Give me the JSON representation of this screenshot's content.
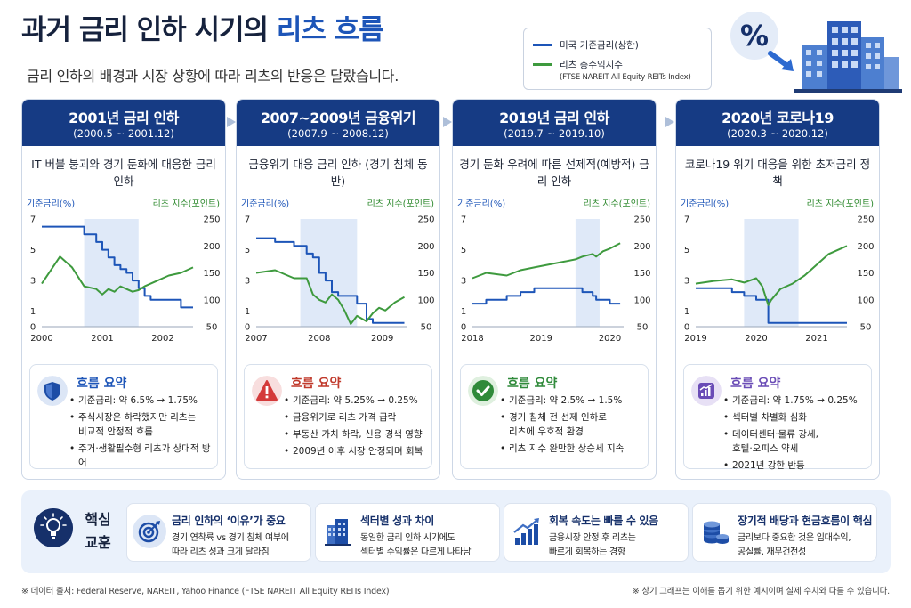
{
  "header": {
    "title_main": "과거 금리 인하 시기의 ",
    "title_highlight": "리츠 흐름",
    "subtitle": "금리 인하의 배경과 시장 상황에 따라 리츠의 반응은 달랐습니다."
  },
  "legend": {
    "rate_label": "미국 기준금리(상한)",
    "reit_label": "리츠 총수익지수",
    "reit_sub": "(FTSE NAREIT All Equity REITs Index)"
  },
  "colors": {
    "rate": "#1d55b8",
    "reit": "#3e9a3e",
    "header": "#163b84",
    "shade": "#dfe9f8"
  },
  "panels": [
    {
      "title": "2001년 금리 인하",
      "period": "(2000.5 ~ 2001.12)",
      "desc": "IT 버블 붕괴와 경기 둔화에 대응한 금리 인하",
      "left_axis_label": "기준금리(%)",
      "right_axis_label": "리츠 지수(포인트)",
      "summary_title": "흐름 요약",
      "summary_icon": "shield-icon",
      "summary": [
        "기준금리: 약 6.5% → 1.75%",
        "주식시장은 하락했지만 리츠는\n비교적 안정적 흐름",
        "주거·생활필수형 리츠가 상대적 방어"
      ]
    },
    {
      "title": "2007~2009년 금융위기",
      "period": "(2007.9 ~ 2008.12)",
      "desc": "금융위기 대응 금리 인하 (경기 침체 동반)",
      "left_axis_label": "기준금리(%)",
      "right_axis_label": "리츠 지수(포인트)",
      "summary_title": "흐름 요약",
      "summary_icon": "warning-icon",
      "summary": [
        "기준금리: 약 5.25% → 0.25%",
        "금융위기로 리츠 가격 급락",
        "부동산 가치 하락, 신용 경색 영향",
        "2009년 이후 시장 안정되며 회복"
      ]
    },
    {
      "title": "2019년 금리 인하",
      "period": "(2019.7 ~ 2019.10)",
      "desc": "경기 둔화 우려에 따른 선제적(예방적) 금리 인하",
      "left_axis_label": "기준금리(%)",
      "right_axis_label": "리츠 지수(포인트)",
      "summary_title": "흐름 요약",
      "summary_icon": "check-icon",
      "summary": [
        "기준금리: 약 2.5% → 1.5%",
        "경기 침체 전 선제 인하로\n리츠에 우호적 환경",
        "리츠 지수 완만한 상승세 지속"
      ]
    },
    {
      "title": "2020년 코로나19",
      "period": "(2020.3 ~ 2020.12)",
      "desc": "코로나19 위기 대응을 위한 초저금리 정책",
      "left_axis_label": "기준금리(%)",
      "right_axis_label": "리츠 지수(포인트)",
      "summary_title": "흐름 요약",
      "summary_icon": "growth-chart-icon",
      "summary": [
        "기준금리: 약 1.75% → 0.25%",
        "섹터별 차별화 심화",
        "데이터센터·물류 강세,\n호텔·오피스 약세",
        "2021년 강한 반등"
      ]
    }
  ],
  "chart_data": [
    {
      "type": "line",
      "left_ticks": [
        0,
        1,
        3,
        5,
        7
      ],
      "right_ticks": [
        50,
        100,
        150,
        200,
        250
      ],
      "x_ticks": [
        "2000",
        "2001",
        "2002"
      ],
      "x": [
        2000.0,
        2000.3,
        2000.5,
        2000.7,
        2000.9,
        2001.0,
        2001.1,
        2001.2,
        2001.3,
        2001.4,
        2001.5,
        2001.6,
        2001.7,
        2001.8,
        2001.9,
        2002.0,
        2002.1,
        2002.3,
        2002.5
      ],
      "xlim": [
        2000.0,
        2002.5
      ],
      "shade": [
        2000.7,
        2001.6
      ],
      "series": [
        {
          "name": "미국 기준금리(상한)",
          "axis": "left",
          "values": [
            6.5,
            6.5,
            6.5,
            6.0,
            5.5,
            5.0,
            4.5,
            4.0,
            3.75,
            3.5,
            3.0,
            2.5,
            2.0,
            1.75,
            1.75,
            1.75,
            1.75,
            1.25,
            1.25
          ]
        },
        {
          "name": "리츠 총수익지수",
          "axis": "right",
          "values": [
            130,
            180,
            160,
            125,
            120,
            110,
            120,
            115,
            125,
            120,
            115,
            118,
            125,
            130,
            135,
            140,
            145,
            150,
            160
          ]
        }
      ]
    },
    {
      "type": "line",
      "left_ticks": [
        0,
        1,
        3,
        5,
        7
      ],
      "right_ticks": [
        50,
        100,
        150,
        200,
        250
      ],
      "x_ticks": [
        "2007",
        "2008",
        "2009"
      ],
      "x": [
        2007.0,
        2007.3,
        2007.6,
        2007.8,
        2007.9,
        2008.0,
        2008.1,
        2008.2,
        2008.3,
        2008.4,
        2008.5,
        2008.6,
        2008.75,
        2008.85,
        2008.95,
        2009.05,
        2009.2,
        2009.35
      ],
      "xlim": [
        2007.0,
        2009.4
      ],
      "shade": [
        2007.7,
        2008.6
      ],
      "series": [
        {
          "name": "미국 기준금리(상한)",
          "axis": "left",
          "values": [
            5.75,
            5.5,
            5.25,
            4.75,
            4.5,
            3.5,
            3.0,
            2.25,
            2.0,
            2.0,
            2.0,
            1.5,
            0.5,
            0.25,
            0.25,
            0.25,
            0.25,
            0.25
          ]
        },
        {
          "name": "리츠 총수익지수",
          "axis": "right",
          "values": [
            150,
            155,
            140,
            140,
            110,
            100,
            95,
            110,
            100,
            80,
            55,
            70,
            60,
            75,
            85,
            80,
            95,
            105
          ]
        }
      ]
    },
    {
      "type": "line",
      "left_ticks": [
        0,
        1,
        3,
        5,
        7
      ],
      "right_ticks": [
        50,
        100,
        150,
        200,
        250
      ],
      "x_ticks": [
        "2018",
        "2019",
        "2020"
      ],
      "x": [
        2018.0,
        2018.2,
        2018.5,
        2018.7,
        2018.9,
        2019.1,
        2019.3,
        2019.5,
        2019.6,
        2019.75,
        2019.8,
        2019.9,
        2020.0,
        2020.15
      ],
      "xlim": [
        2018.0,
        2020.2
      ],
      "shade": [
        2019.5,
        2019.85
      ],
      "series": [
        {
          "name": "미국 기준금리(상한)",
          "axis": "left",
          "values": [
            1.5,
            1.75,
            2.0,
            2.25,
            2.5,
            2.5,
            2.5,
            2.5,
            2.25,
            2.0,
            1.75,
            1.75,
            1.5,
            1.5
          ]
        },
        {
          "name": "리츠 총수익지수",
          "axis": "right",
          "values": [
            140,
            150,
            145,
            155,
            160,
            165,
            170,
            175,
            180,
            185,
            180,
            190,
            195,
            205
          ]
        }
      ]
    },
    {
      "type": "line",
      "left_ticks": [
        0,
        1,
        3,
        5,
        7
      ],
      "right_ticks": [
        50,
        100,
        150,
        200,
        250
      ],
      "x_ticks": [
        "2019",
        "2020",
        "2021"
      ],
      "x": [
        2019.0,
        2019.3,
        2019.6,
        2019.8,
        2020.0,
        2020.1,
        2020.2,
        2020.25,
        2020.4,
        2020.6,
        2020.8,
        2021.0,
        2021.2,
        2021.4,
        2021.5
      ],
      "xlim": [
        2019.0,
        2021.5
      ],
      "shade": [
        2019.8,
        2020.7
      ],
      "series": [
        {
          "name": "미국 기준금리(상한)",
          "axis": "left",
          "values": [
            2.5,
            2.5,
            2.25,
            2.0,
            1.75,
            1.75,
            0.25,
            0.25,
            0.25,
            0.25,
            0.25,
            0.25,
            0.25,
            0.25,
            0.25
          ]
        },
        {
          "name": "리츠 총수익지수",
          "axis": "right",
          "values": [
            130,
            135,
            138,
            132,
            140,
            125,
            90,
            100,
            120,
            130,
            145,
            165,
            185,
            195,
            200
          ]
        }
      ]
    }
  ],
  "lessons": {
    "heading": "핵심 교훈",
    "items": [
      {
        "title": "금리 인하의 ‘이유’가 중요",
        "desc": "경기 연착륙 vs 경기 침체 여부에\n따라 리츠 성과 크게 달라짐",
        "icon": "target-icon"
      },
      {
        "title": "섹터별 성과 차이",
        "desc": "동일한 금리 인하 시기에도\n섹터별 수익률은 다르게 나타남",
        "icon": "buildings-icon"
      },
      {
        "title": "회복 속도는 빠를 수 있음",
        "desc": "금융시장 안정 후 리츠는\n빠르게 회복하는 경향",
        "icon": "rising-bars-icon"
      },
      {
        "title": "장기적 배당과 현금흐름이 핵심",
        "desc": "금리보다 중요한 것은 임대수익,\n공실률, 재무건전성",
        "icon": "coins-icon"
      }
    ]
  },
  "footer": {
    "source": "※ 데이터 출처: Federal Reserve, NAREIT, Yahoo Finance (FTSE NAREIT All Equity REITs Index)",
    "note": "※ 상기 그래프는 이해를 돕기 위한 예시이며 실제 수치와 다를 수 있습니다."
  }
}
